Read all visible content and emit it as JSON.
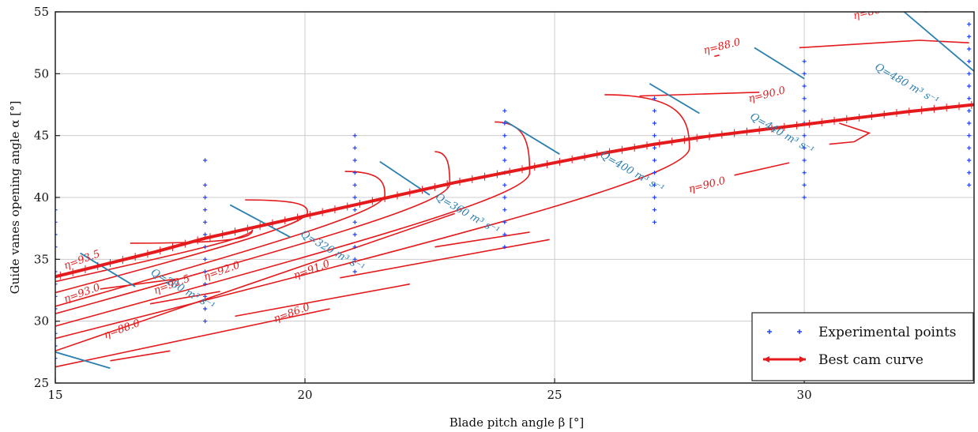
{
  "chart_data": {
    "type": "line",
    "xlabel": "Blade pitch angle β [°]",
    "ylabel": "Guide vanes opening angle α [°]",
    "xlim": [
      15,
      33.4
    ],
    "ylim": [
      25,
      55
    ],
    "x_ticks": [
      15,
      20,
      25,
      30
    ],
    "y_ticks": [
      25,
      30,
      35,
      40,
      45,
      50,
      55
    ],
    "grid": true,
    "legend_placement": "bottom-right",
    "colors": {
      "efficiency": "#e41a1c",
      "discharge": "#2a7fb0",
      "points": "#1f3fff",
      "grid": "#cccccc"
    },
    "legend": [
      {
        "label": "Experimental points",
        "marker": "plus"
      },
      {
        "label": "Best cam curve",
        "marker": "line"
      }
    ],
    "experimental_points": [
      {
        "x": 15,
        "y": [
          27,
          28,
          29,
          30,
          31,
          32,
          33,
          34,
          35,
          36,
          37,
          38,
          39,
          40
        ]
      },
      {
        "x": 18,
        "y": [
          30,
          31,
          32,
          33,
          34,
          35,
          36,
          37,
          38,
          39,
          40,
          41,
          43
        ]
      },
      {
        "x": 21,
        "y": [
          34,
          35,
          36,
          37,
          38,
          39,
          40,
          41,
          42,
          43,
          44,
          45
        ]
      },
      {
        "x": 24,
        "y": [
          36,
          37,
          38,
          39,
          40,
          41,
          42,
          43,
          44,
          45,
          46,
          47
        ]
      },
      {
        "x": 27,
        "y": [
          38,
          39,
          40,
          41,
          42,
          43,
          44,
          45,
          46,
          47,
          48
        ]
      },
      {
        "x": 30,
        "y": [
          40,
          41,
          42,
          43,
          44,
          45,
          46,
          47,
          48,
          49,
          50,
          51
        ]
      },
      {
        "x": 33.3,
        "y": [
          41,
          42,
          43,
          44,
          45,
          46,
          47,
          48,
          49,
          50,
          51,
          52,
          53,
          54
        ]
      }
    ],
    "best_cam_curve": {
      "name": "Best cam curve",
      "x": [
        15,
        16,
        17,
        18,
        19,
        20,
        21,
        22,
        23,
        24,
        25,
        26,
        27,
        28,
        29,
        30,
        31,
        32,
        33.4
      ],
      "y": [
        33.6,
        34.6,
        35.6,
        36.7,
        37.6,
        38.5,
        39.4,
        40.3,
        41.2,
        42.0,
        42.8,
        43.6,
        44.3,
        44.9,
        45.4,
        45.9,
        46.4,
        46.9,
        47.5
      ]
    },
    "efficiency_curves": [
      {
        "kind": "nose",
        "tip": [
          18.95,
          37.4
        ],
        "upper_end": [
          16.5,
          36.3
        ],
        "lower_end": [
          15.0,
          33.2
        ]
      },
      {
        "kind": "nose",
        "tip": [
          20.05,
          38.8
        ],
        "upper_end": [
          18.8,
          39.8
        ],
        "lower_end": [
          15.0,
          32.3
        ]
      },
      {
        "kind": "nose",
        "tip": [
          21.6,
          40.2
        ],
        "upper_end": [
          20.8,
          42.1
        ],
        "lower_end": [
          15.0,
          31.2
        ]
      },
      {
        "kind": "nose",
        "tip": [
          22.9,
          41.1
        ],
        "upper_end": [
          22.6,
          43.7
        ],
        "lower_end": [
          15.0,
          30.6
        ]
      },
      {
        "kind": "nose",
        "tip": [
          24.5,
          42.0
        ],
        "upper_end": [
          23.8,
          46.1
        ],
        "lower_end": [
          15.0,
          29.6
        ]
      },
      {
        "kind": "nose",
        "tip": [
          27.7,
          44.0
        ],
        "upper_end": [
          26.0,
          48.3
        ],
        "lower_end": [
          15.0,
          28.6
        ]
      },
      {
        "kind": "line",
        "x": [
          15.0,
          23.0
        ],
        "y": [
          27.6,
          38.7
        ]
      },
      {
        "kind": "line",
        "x": [
          15.0,
          20.5
        ],
        "y": [
          26.3,
          31.0
        ]
      },
      {
        "kind": "line",
        "x": [
          20.7,
          24.9
        ],
        "y": [
          33.5,
          36.6
        ]
      },
      {
        "kind": "line",
        "x": [
          18.6,
          22.1
        ],
        "y": [
          30.4,
          33.0
        ]
      },
      {
        "kind": "line",
        "x": [
          16.9,
          18.3
        ],
        "y": [
          31.4,
          32.4
        ]
      },
      {
        "kind": "line",
        "x": [
          15.9,
          17.4
        ],
        "y": [
          32.6,
          33.4
        ]
      },
      {
        "kind": "line",
        "x": [
          16.1,
          17.3
        ],
        "y": [
          26.8,
          27.6
        ]
      },
      {
        "kind": "line",
        "x": [
          22.6,
          24.5
        ],
        "y": [
          36.0,
          37.2
        ]
      },
      {
        "kind": "line",
        "x": [
          28.6,
          29.7
        ],
        "y": [
          41.8,
          42.8
        ]
      },
      {
        "kind": "line",
        "x": [
          26.7,
          29.1
        ],
        "y": [
          48.2,
          48.5
        ]
      },
      {
        "kind": "line",
        "x": [
          29.9,
          32.3,
          33.3
        ],
        "y": [
          52.1,
          52.7,
          52.5
        ]
      },
      {
        "kind": "line",
        "x": [
          30.7,
          31.3,
          31.0,
          30.5
        ],
        "y": [
          46.0,
          45.2,
          44.5,
          44.3
        ]
      },
      {
        "kind": "line",
        "x": [
          32.4,
          33.4
        ],
        "y": [
          55.0,
          55.2
        ]
      },
      {
        "kind": "line",
        "x": [
          28.2,
          28.3
        ],
        "y": [
          51.4,
          51.5
        ]
      }
    ],
    "efficiency_labels": [
      {
        "text": "η=93.5",
        "x": 15.2,
        "y": 34.2,
        "angle": -20
      },
      {
        "text": "η=93.0",
        "x": 15.2,
        "y": 31.5,
        "angle": -20
      },
      {
        "text": "η=92.5",
        "x": 17.0,
        "y": 32.2,
        "angle": -20
      },
      {
        "text": "η=92.0",
        "x": 18.0,
        "y": 33.3,
        "angle": -20
      },
      {
        "text": "η=91.0",
        "x": 19.8,
        "y": 33.4,
        "angle": -20
      },
      {
        "text": "η=88.0",
        "x": 16.0,
        "y": 28.6,
        "angle": -20
      },
      {
        "text": "η=86.0",
        "x": 19.4,
        "y": 29.9,
        "angle": -20
      },
      {
        "text": "η=90.0",
        "x": 27.7,
        "y": 40.4,
        "angle": -14
      },
      {
        "text": "η=90.0",
        "x": 28.9,
        "y": 47.7,
        "angle": -14
      },
      {
        "text": "η=88.0",
        "x": 28.0,
        "y": 51.6,
        "angle": -14
      },
      {
        "text": "η=86.0",
        "x": 31.0,
        "y": 54.4,
        "angle": -14
      }
    ],
    "discharge_curves": [
      {
        "x": [
          15.0,
          16.1
        ],
        "y": [
          27.5,
          26.2
        ]
      },
      {
        "x": [
          15.5,
          16.6
        ],
        "y": [
          35.5,
          32.8
        ]
      },
      {
        "x": [
          18.5,
          19.7
        ],
        "y": [
          39.4,
          36.8
        ]
      },
      {
        "x": [
          21.5,
          22.5
        ],
        "y": [
          42.9,
          40.2
        ]
      },
      {
        "x": [
          24.0,
          25.1
        ],
        "y": [
          46.2,
          43.5
        ]
      },
      {
        "x": [
          26.9,
          27.9
        ],
        "y": [
          49.2,
          46.8
        ]
      },
      {
        "x": [
          29.0,
          30.0
        ],
        "y": [
          52.1,
          49.6
        ]
      },
      {
        "x": [
          32.0,
          33.4
        ],
        "y": [
          55.0,
          50.2
        ]
      }
    ],
    "discharge_labels": [
      {
        "text": "Q=280 m³ s⁻¹",
        "x": 16.9,
        "y": 33.8,
        "angle": 30
      },
      {
        "text": "Q=320 m³ s⁻¹",
        "x": 19.9,
        "y": 36.9,
        "angle": 30
      },
      {
        "text": "Q=360 m³ s⁻¹",
        "x": 22.6,
        "y": 39.9,
        "angle": 30
      },
      {
        "text": "Q=400 m³ s⁻¹",
        "x": 25.9,
        "y": 43.3,
        "angle": 30
      },
      {
        "text": "Q=440 m³ s⁻¹",
        "x": 28.9,
        "y": 46.4,
        "angle": 30
      },
      {
        "text": "Q=480 m³ s⁻¹",
        "x": 31.4,
        "y": 50.4,
        "angle": 30
      }
    ]
  }
}
